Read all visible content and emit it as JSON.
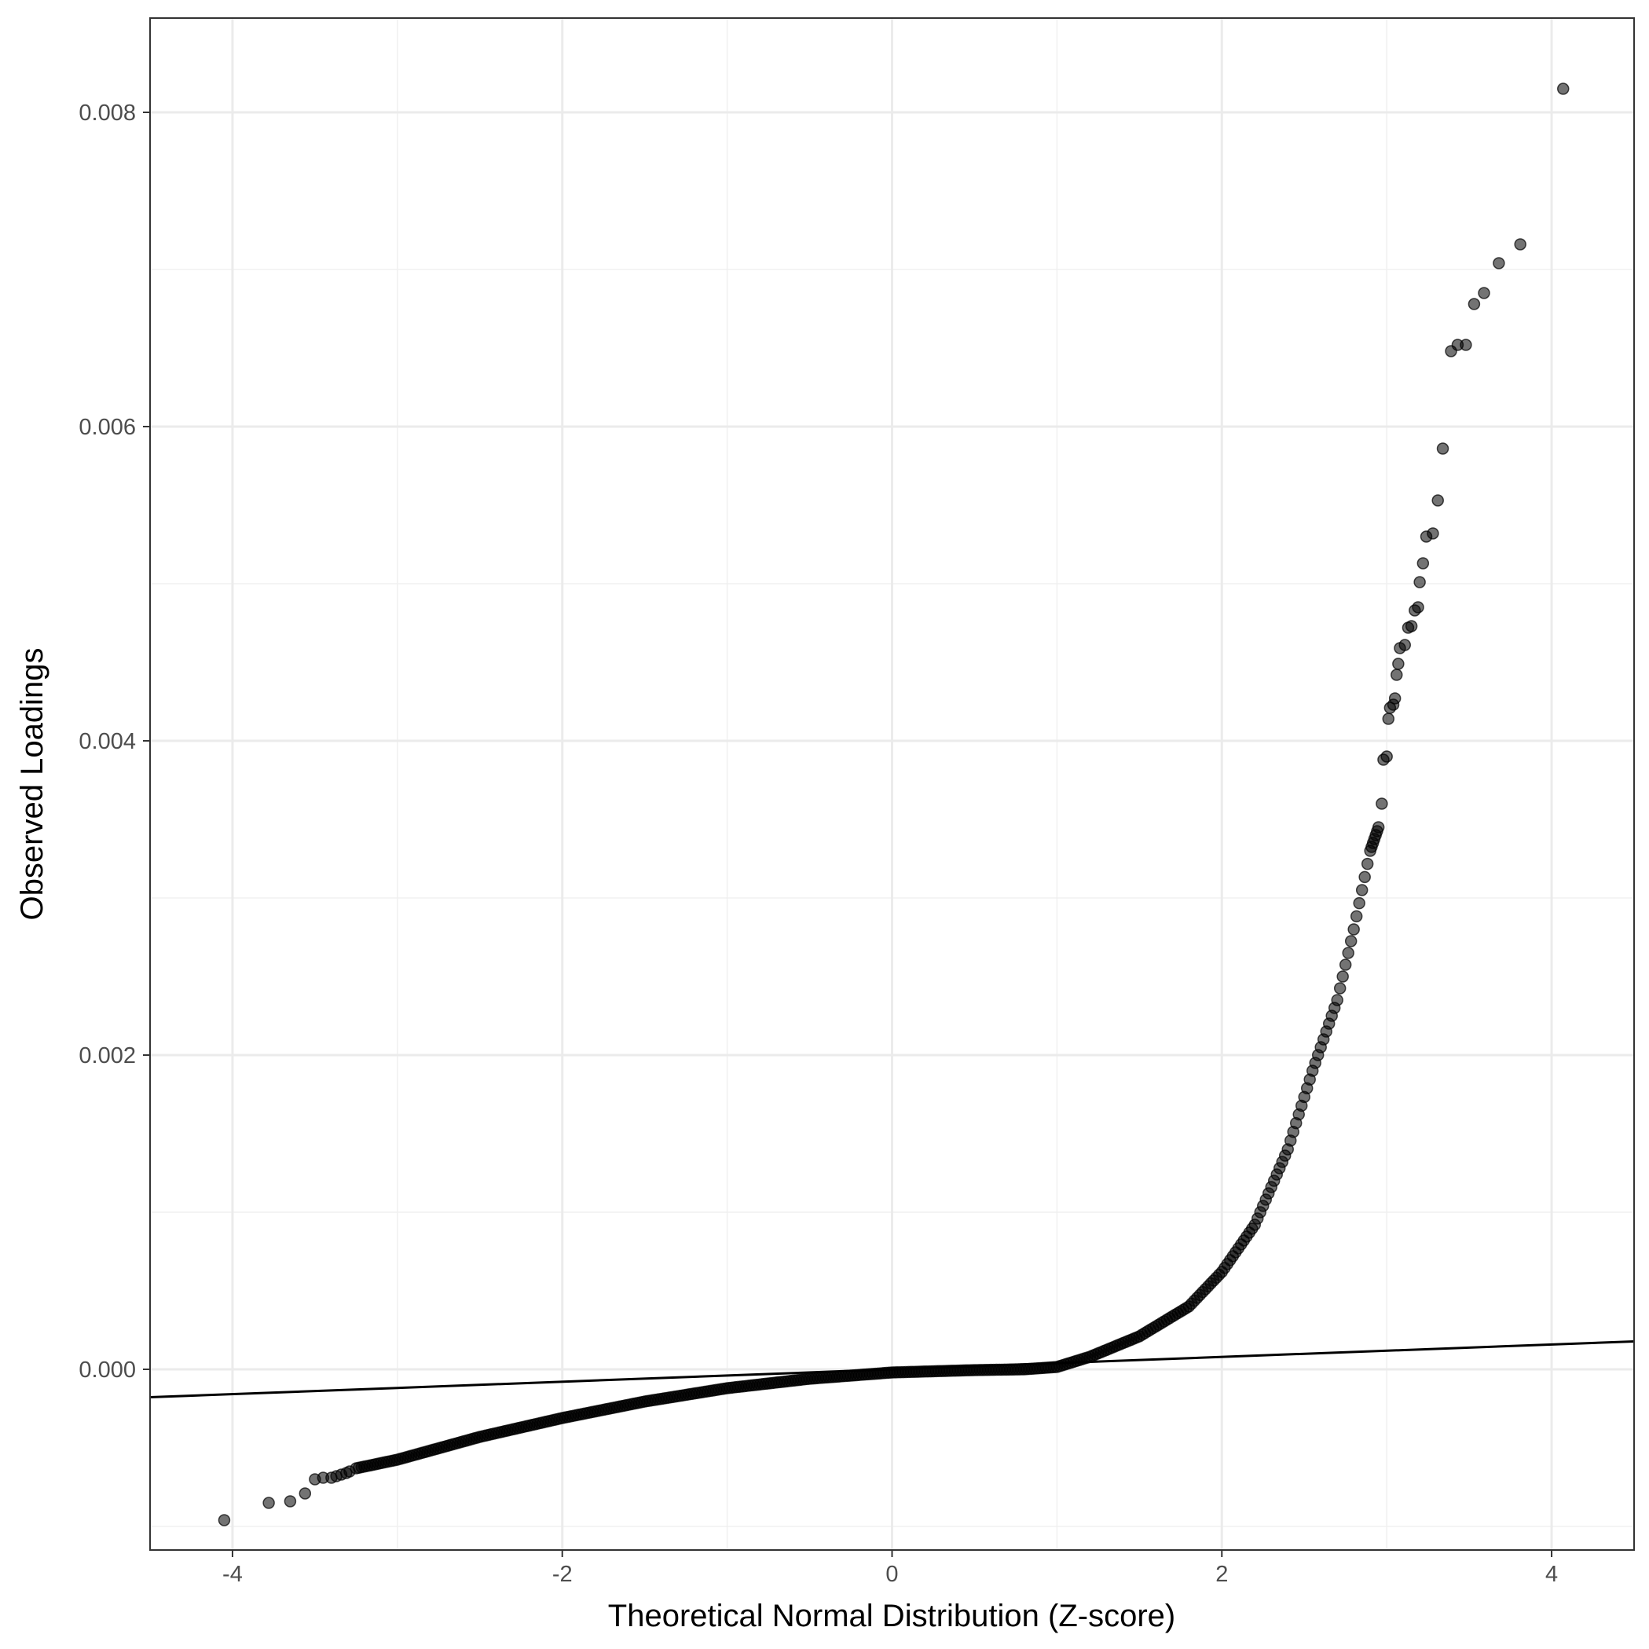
{
  "chart_data": {
    "type": "scatter",
    "title": "",
    "xlabel": "Theoretical Normal Distribution (Z-score)",
    "ylabel": "Observed Loadings",
    "xlim": [
      -4.5,
      4.5
    ],
    "ylim": [
      -0.00115,
      0.0086
    ],
    "x_ticks": [
      -4,
      -2,
      0,
      2,
      4
    ],
    "x_tick_labels": [
      "-4",
      "-2",
      "0",
      "2",
      "4"
    ],
    "y_ticks": [
      0,
      0.002,
      0.004,
      0.006,
      0.008
    ],
    "y_tick_labels": [
      "0.000",
      "0.002",
      "0.004",
      "0.006",
      "0.008"
    ],
    "grid": true,
    "theme": "bw",
    "point_color": "#000000",
    "point_opacity": 0.55,
    "reference_line": {
      "intercept": 0.0,
      "slope": 3.95e-05,
      "color": "#000000"
    },
    "outlier_points": [
      [
        -4.05,
        -0.00096
      ],
      [
        -3.78,
        -0.00085
      ],
      [
        -3.65,
        -0.00084
      ],
      [
        -3.56,
        -0.00079
      ],
      [
        -3.5,
        -0.0007
      ],
      [
        -3.45,
        -0.00069
      ],
      [
        -3.4,
        -0.00069
      ],
      [
        -3.37,
        -0.00068
      ],
      [
        -3.34,
        -0.00067
      ],
      [
        -3.31,
        -0.00066
      ],
      [
        -3.29,
        -0.00065
      ],
      [
        2.95,
        0.00345
      ],
      [
        2.97,
        0.0036
      ],
      [
        2.98,
        0.00388
      ],
      [
        3.0,
        0.0039
      ],
      [
        3.01,
        0.00414
      ],
      [
        3.02,
        0.00421
      ],
      [
        3.04,
        0.00423
      ],
      [
        3.05,
        0.00427
      ],
      [
        3.06,
        0.00442
      ],
      [
        3.07,
        0.00449
      ],
      [
        3.08,
        0.00459
      ],
      [
        3.11,
        0.00461
      ],
      [
        3.13,
        0.00472
      ],
      [
        3.15,
        0.00473
      ],
      [
        3.17,
        0.00483
      ],
      [
        3.19,
        0.00485
      ],
      [
        3.2,
        0.00501
      ],
      [
        3.22,
        0.00513
      ],
      [
        3.24,
        0.0053
      ],
      [
        3.28,
        0.00532
      ],
      [
        3.31,
        0.00553
      ],
      [
        3.34,
        0.00586
      ],
      [
        3.39,
        0.00648
      ],
      [
        3.43,
        0.00652
      ],
      [
        3.48,
        0.00652
      ],
      [
        3.53,
        0.00678
      ],
      [
        3.59,
        0.00685
      ],
      [
        3.68,
        0.00704
      ],
      [
        3.81,
        0.00716
      ],
      [
        4.07,
        0.00815
      ]
    ],
    "curve_knots": [
      [
        -3.25,
        -0.00063
      ],
      [
        -3.0,
        -0.000575
      ],
      [
        -2.5,
        -0.00043
      ],
      [
        -2.0,
        -0.00031
      ],
      [
        -1.5,
        -0.000205
      ],
      [
        -1.0,
        -0.00012
      ],
      [
        -0.5,
        -6e-05
      ],
      [
        0.0,
        -2e-05
      ],
      [
        0.5,
        -5e-06
      ],
      [
        0.8,
        0.0
      ],
      [
        1.0,
        1.5e-05
      ],
      [
        1.2,
        8e-05
      ],
      [
        1.5,
        0.00021
      ],
      [
        1.8,
        0.0004
      ],
      [
        2.0,
        0.00062
      ],
      [
        2.2,
        0.00092
      ],
      [
        2.4,
        0.0014
      ],
      [
        2.55,
        0.0019
      ],
      [
        2.7,
        0.00235
      ],
      [
        2.8,
        0.0028
      ],
      [
        2.9,
        0.0033
      ],
      [
        2.95,
        0.00345
      ]
    ]
  }
}
